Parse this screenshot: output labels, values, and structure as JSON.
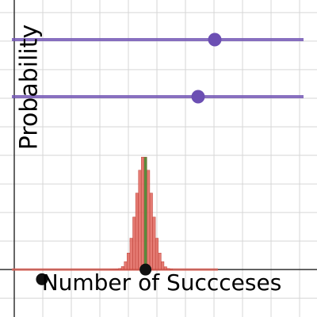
{
  "chart_data": {
    "type": "bar",
    "x_label": "Number of Succceses",
    "y_label": "Probability",
    "x": [
      3.3,
      3.4,
      3.5,
      3.6,
      3.7,
      3.8,
      3.9,
      4.0,
      4.1,
      4.2,
      4.3,
      4.4,
      4.5,
      4.6,
      4.7,
      4.8,
      4.9,
      5.0,
      5.1,
      5.2,
      5.3,
      5.4,
      5.5
    ],
    "values": [
      0.0,
      0.0004,
      0.002,
      0.006,
      0.02,
      0.055,
      0.14,
      0.29,
      0.55,
      0.92,
      1.34,
      1.74,
      1.97,
      1.97,
      1.74,
      1.34,
      0.92,
      0.55,
      0.29,
      0.14,
      0.05,
      0.02,
      0.01
    ],
    "color": "#e0645a",
    "mean": 4.6,
    "mean_color": "#5a8a3c",
    "points": {
      "x": [
        4.6,
        0.97
      ],
      "y": [
        0,
        -0.17
      ]
    },
    "xlim": [
      -0.5,
      10.61
    ],
    "ylim": [
      -0.83,
      4.72
    ],
    "xticks": [
      0,
      1,
      2,
      3,
      4,
      5,
      6,
      7,
      8,
      9,
      10
    ],
    "yticks": [
      -0.5,
      0,
      0.5,
      1,
      1.5,
      2,
      2.5,
      3,
      3.5,
      4,
      4.5
    ],
    "grid": true
  }
}
